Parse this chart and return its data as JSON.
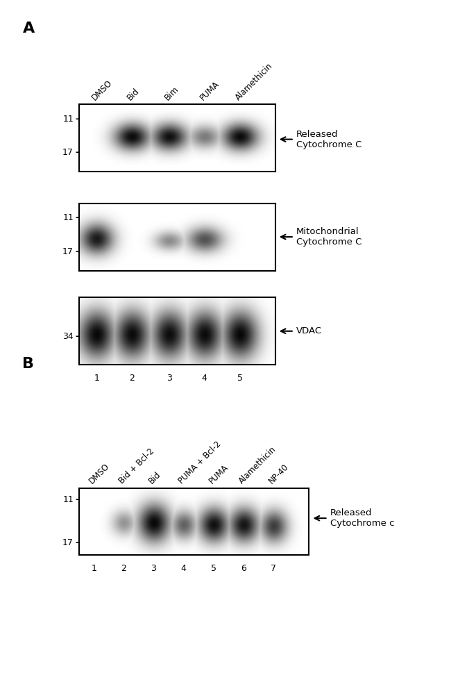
{
  "panel_A_label": "A",
  "panel_B_label": "B",
  "panel_A_lane_labels": [
    "DMSO",
    "Bid",
    "Bim",
    "PUMA",
    "Alamethicin"
  ],
  "panel_B_lane_labels": [
    "DMSO",
    "Bid + Bcl-2",
    "Bid",
    "PUMA + Bcl-2",
    "PUMA",
    "Alamethicin",
    "NP-40"
  ],
  "panel_A_lane_numbers": [
    "1",
    "2",
    "3",
    "4",
    "5"
  ],
  "panel_B_lane_numbers": [
    "1",
    "2",
    "3",
    "4",
    "5",
    "6",
    "7"
  ],
  "panel_A_blot1_label": "Released\nCytochrome C",
  "panel_A_blot2_label": "Mitochondrial\nCytochrome C",
  "panel_A_blot3_label": "VDAC",
  "panel_B_blot1_label": "Released\nCytochrome c",
  "bg_color": "#ffffff"
}
